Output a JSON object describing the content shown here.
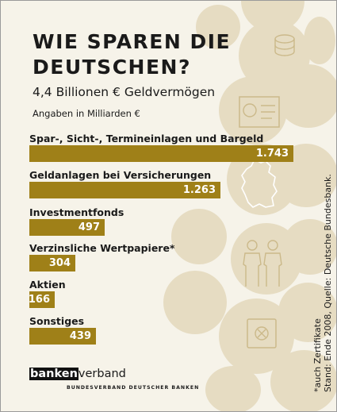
{
  "title": "WIE SPAREN DIE DEUTSCHEN?",
  "subtitle": "4,4 Billionen € Geldvermögen",
  "unit_note": "Angaben in Milliarden €",
  "footnote_lines": [
    "*auch Zertifikate",
    "Stand: Ende 2008, Quelle: Deutsche Bundesbank."
  ],
  "logo": {
    "part1": "banken",
    "part2": "verband",
    "tagline": "BUNDESVERBAND DEUTSCHER BANKEN"
  },
  "colors": {
    "bar": "#9f8018",
    "background": "#f6f3e9",
    "decor": "#e6dcc2"
  },
  "decor_icons": [
    "coins-icon",
    "document-icon",
    "germany-map-icon",
    "people-icon",
    "safe-icon"
  ],
  "chart_data": {
    "type": "bar",
    "orientation": "horizontal",
    "title": "WIE SPAREN DIE DEUTSCHEN?",
    "subtitle": "4,4 Billionen € Geldvermögen",
    "unit": "Angaben in Milliarden €",
    "categories": [
      "Spar-, Sicht-, Termineinlagen und Bargeld",
      "Geldanlagen bei Versicherungen",
      "Investmentfonds",
      "Verzinsliche Wertpapiere*",
      "Aktien",
      "Sonstiges"
    ],
    "values": [
      1743,
      1263,
      497,
      304,
      166,
      439
    ],
    "value_labels": [
      "1.743",
      "1.263",
      "497",
      "304",
      "166",
      "439"
    ],
    "xlim": [
      0,
      1743
    ]
  }
}
